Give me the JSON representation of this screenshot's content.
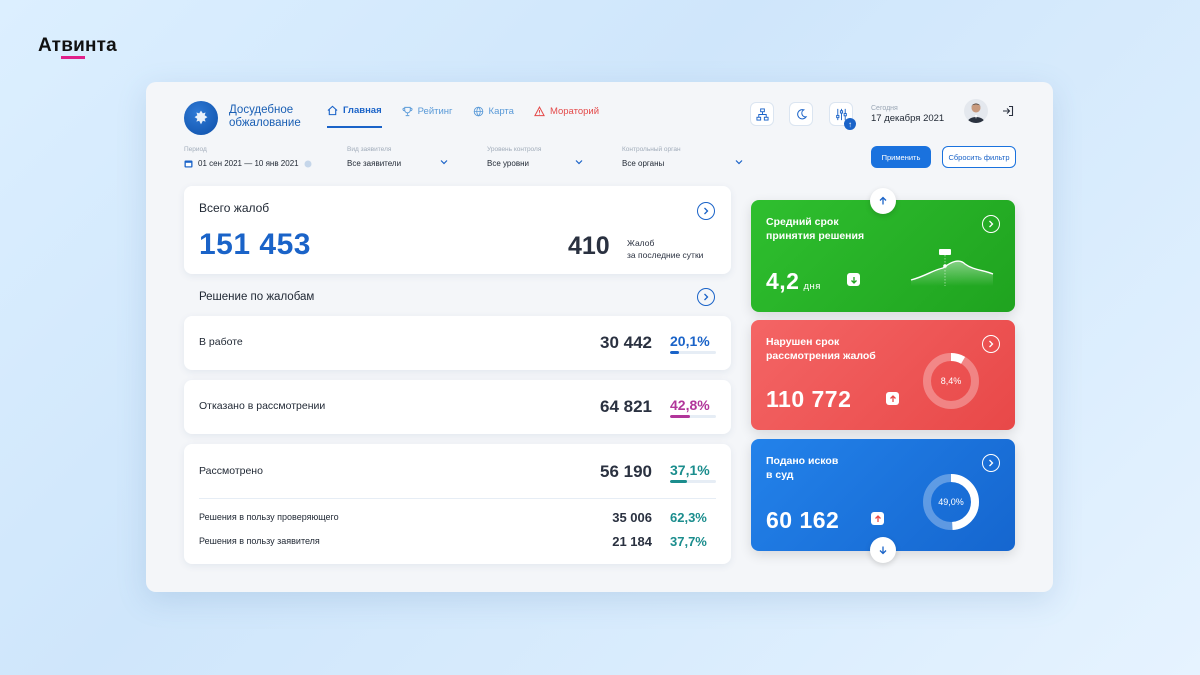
{
  "brand": {
    "name_part1": "Ат",
    "name_part2": "ви",
    "name_part3": "нта"
  },
  "app": {
    "title": "Досудебное обжалование"
  },
  "nav": [
    {
      "label": "Главная",
      "icon": "home-icon",
      "active": true
    },
    {
      "label": "Рейтинг",
      "icon": "trophy-icon"
    },
    {
      "label": "Карта",
      "icon": "globe-icon"
    },
    {
      "label": "Мораторий",
      "icon": "warning-icon"
    }
  ],
  "header": {
    "today_label": "Сегодня",
    "today_date": "17 декабря 2021",
    "badge": "↑"
  },
  "filters": {
    "period": {
      "label": "Период",
      "value": "01 сен 2021 — 10 янв 2021"
    },
    "applicant": {
      "label": "Вид заявителя",
      "value": "Все заявители"
    },
    "level": {
      "label": "Уровень контроля",
      "value": "Все уровни"
    },
    "organ": {
      "label": "Контрольный орган",
      "value": "Все органы"
    },
    "apply": "Применить",
    "reset": "Сбросить фильтр"
  },
  "total": {
    "title": "Всего жалоб",
    "value": "151 453",
    "day_value": "410",
    "day_label_1": "Жалоб",
    "day_label_2": "за последние сутки"
  },
  "decisions": {
    "title": "Решение по жалобам",
    "rows": [
      {
        "label": "В работе",
        "value": "30 442",
        "pct": "20,1%",
        "fraction": 0.201,
        "color": "#1a63c8"
      },
      {
        "label": "Отказано в рассмотрении",
        "value": "64 821",
        "pct": "42,8%",
        "fraction": 0.428,
        "color": "#b1369a"
      },
      {
        "label": "Рассмотрено",
        "value": "56 190",
        "pct": "37,1%",
        "fraction": 0.371,
        "color": "#1b8d8d"
      }
    ],
    "sub": [
      {
        "label": "Решения в пользу проверяющего",
        "value": "35 006",
        "pct": "62,3%"
      },
      {
        "label": "Решения в пользу заявителя",
        "value": "21 184",
        "pct": "37,7%"
      }
    ]
  },
  "cards": {
    "avg": {
      "title_1": "Средний срок",
      "title_2": "принятия решения",
      "value": "4,2",
      "unit": "дня",
      "color": "#2bb02b"
    },
    "violated": {
      "title_1": "Нарушен срок",
      "title_2": "рассмотрения жалоб",
      "value": "110 772",
      "pct": "8,4%",
      "fraction": 0.084,
      "color": "#ef5b5b"
    },
    "lawsuits": {
      "title_1": "Подано исков",
      "title_2": "в суд",
      "value": "60 162",
      "pct": "49,0%",
      "fraction": 0.49,
      "color": "#1a72de"
    }
  }
}
